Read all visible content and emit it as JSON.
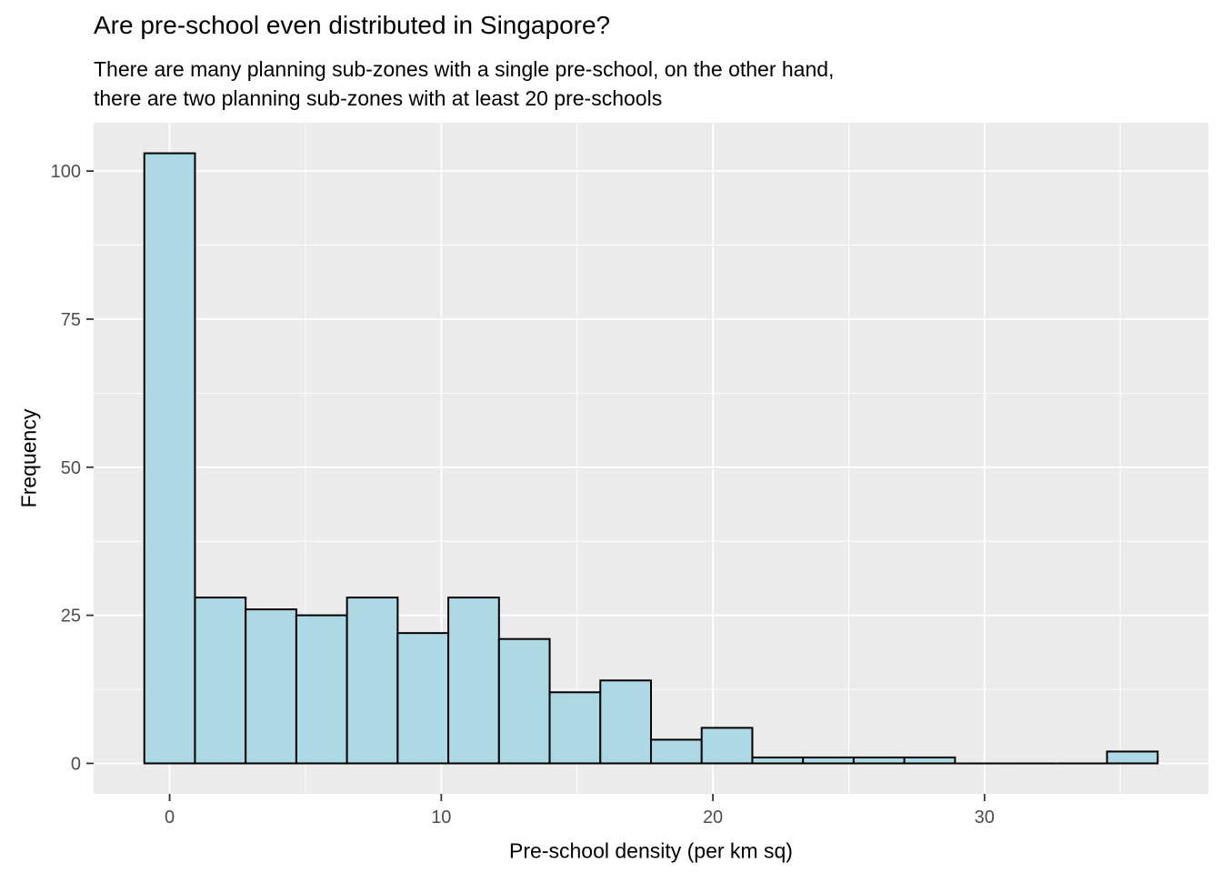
{
  "title": "Are pre-school even distributed in Singapore?",
  "subtitle_lines": [
    "There are many planning sub-zones with a single pre-school, on the other hand,",
    "there are two planning sub-zones with at least 20 pre-schools"
  ],
  "chart_data": {
    "type": "bar",
    "subtype": "histogram",
    "title": "Are pre-school even distributed in Singapore?",
    "subtitle": "There are many planning sub-zones with a single pre-school, on the other hand, there are two planning sub-zones with at least 20 pre-schools",
    "xlabel": "Pre-school density (per km sq)",
    "ylabel": "Frequency",
    "bin_start": -0.9327,
    "bin_width": 1.8654,
    "bin_centers": [
      0,
      1.87,
      3.73,
      5.6,
      7.46,
      9.33,
      11.19,
      13.06,
      14.92,
      16.79,
      18.65,
      20.52,
      22.38,
      24.25,
      26.12,
      27.98,
      29.85,
      31.71,
      33.58,
      35.44
    ],
    "counts": [
      103,
      28,
      26,
      25,
      28,
      22,
      28,
      21,
      12,
      14,
      4,
      6,
      1,
      1,
      1,
      1,
      0,
      0,
      0,
      2
    ],
    "x_ticks": [
      0,
      10,
      20,
      30
    ],
    "x_minor_ticks": [
      5,
      15,
      25,
      35
    ],
    "y_ticks": [
      0,
      25,
      50,
      75,
      100
    ],
    "y_minor_ticks": [
      12.5,
      37.5,
      62.5,
      87.5
    ],
    "xlim": [
      -2.798,
      38.241
    ],
    "ylim": [
      -5.15,
      108.15
    ],
    "grid": true,
    "legend": "none",
    "colors": {
      "bar_fill": "#ADD8E6",
      "bar_stroke": "#000000",
      "panel_background": "#EBEBEB",
      "gridline": "#FFFFFF",
      "tick_mark": "#333333",
      "tick_label": "#4D4D4D",
      "text": "#000000"
    }
  }
}
